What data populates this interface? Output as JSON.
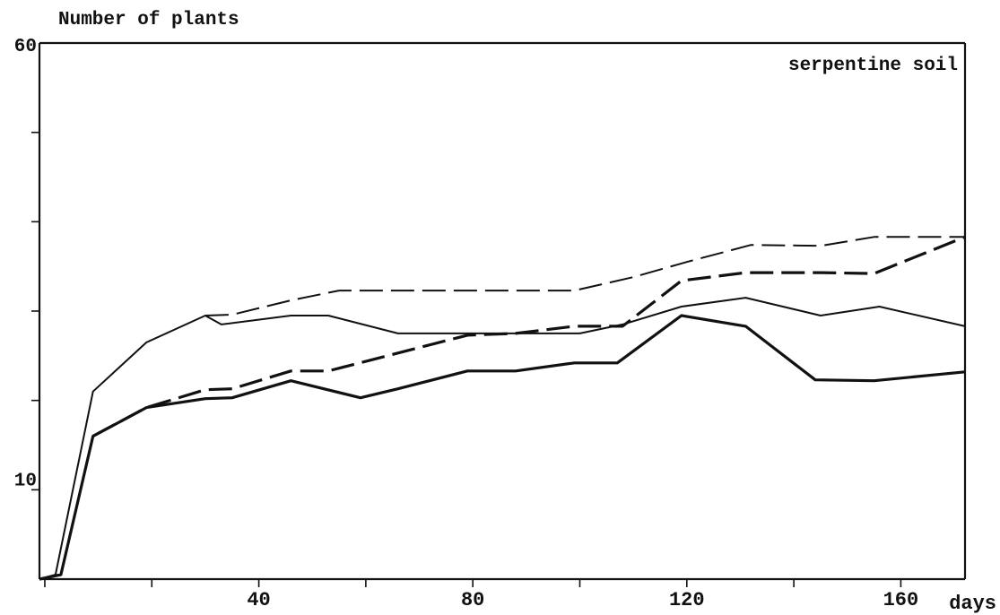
{
  "chart_data": {
    "type": "line",
    "title": "",
    "ylabel": "Number of plants",
    "xlabel": "days",
    "annotation": "serpentine soil",
    "xlim": [
      -1,
      172
    ],
    "ylim": [
      0,
      60
    ],
    "x_ticks": [
      0,
      20,
      40,
      60,
      80,
      100,
      120,
      140,
      160
    ],
    "x_tick_labels": [
      {
        "x": 40,
        "label": "40"
      },
      {
        "x": 80,
        "label": "80"
      },
      {
        "x": 120,
        "label": "120"
      },
      {
        "x": 160,
        "label": "160"
      }
    ],
    "y_ticks": [
      0,
      10,
      20,
      30,
      40,
      50,
      60
    ],
    "y_tick_labels": [
      {
        "y": 10,
        "label": "10"
      },
      {
        "y": 60,
        "label": "60"
      }
    ],
    "series": [
      {
        "style": "solid-thin",
        "color": "#111111",
        "points": [
          [
            -1,
            0
          ],
          [
            2,
            0.5
          ],
          [
            9,
            21
          ],
          [
            19,
            26.5
          ],
          [
            30,
            29.5
          ],
          [
            33,
            28.5
          ],
          [
            46,
            29.5
          ],
          [
            53,
            29.5
          ],
          [
            66,
            27.5
          ],
          [
            79,
            27.5
          ],
          [
            100,
            27.5
          ],
          [
            108,
            28.5
          ],
          [
            119,
            30.5
          ],
          [
            131,
            31.5
          ],
          [
            145,
            29.5
          ],
          [
            156,
            30.5
          ],
          [
            172,
            28.3
          ]
        ]
      },
      {
        "style": "solid-thick",
        "color": "#111111",
        "points": [
          [
            -1,
            0
          ],
          [
            3,
            0.5
          ],
          [
            9,
            16
          ],
          [
            19,
            19.2
          ],
          [
            30,
            20.2
          ],
          [
            35,
            20.3
          ],
          [
            46,
            22.2
          ],
          [
            59,
            20.3
          ],
          [
            66,
            21.3
          ],
          [
            79,
            23.3
          ],
          [
            88,
            23.3
          ],
          [
            99,
            24.2
          ],
          [
            107,
            24.2
          ],
          [
            119,
            29.5
          ],
          [
            131,
            28.3
          ],
          [
            144,
            22.3
          ],
          [
            155,
            22.2
          ],
          [
            172,
            23.2
          ]
        ]
      },
      {
        "style": "dashed-thin",
        "color": "#111111",
        "points": [
          [
            30,
            29.5
          ],
          [
            35,
            29.6
          ],
          [
            46,
            31.2
          ],
          [
            55,
            32.3
          ],
          [
            99,
            32.3
          ],
          [
            110,
            33.8
          ],
          [
            120,
            35.5
          ],
          [
            132,
            37.4
          ],
          [
            145,
            37.3
          ],
          [
            155,
            38.3
          ],
          [
            172,
            38.3
          ]
        ]
      },
      {
        "style": "dashed-thick",
        "color": "#111111",
        "points": [
          [
            9,
            16
          ],
          [
            19,
            19.2
          ],
          [
            30,
            21.2
          ],
          [
            35,
            21.3
          ],
          [
            46,
            23.3
          ],
          [
            53,
            23.3
          ],
          [
            66,
            25.3
          ],
          [
            79,
            27.3
          ],
          [
            88,
            27.5
          ],
          [
            99,
            28.3
          ],
          [
            108,
            28.3
          ],
          [
            119,
            33.4
          ],
          [
            131,
            34.3
          ],
          [
            145,
            34.3
          ],
          [
            155,
            34.2
          ],
          [
            172,
            38.3
          ]
        ]
      }
    ]
  }
}
